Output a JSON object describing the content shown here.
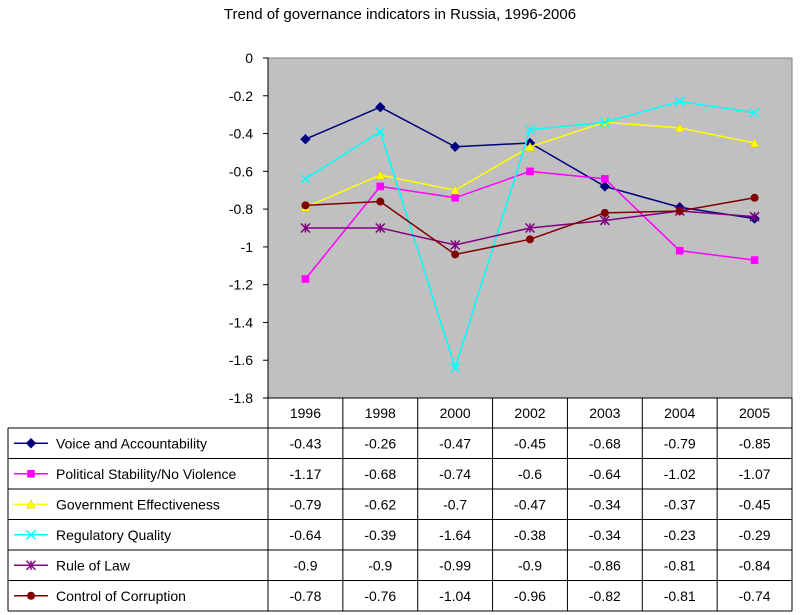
{
  "chart_data": {
    "type": "line",
    "title": "Trend of governance indicators in Russia, 1996-2006",
    "categories": [
      "1996",
      "1998",
      "2000",
      "2002",
      "2003",
      "2004",
      "2005"
    ],
    "ylim": [
      -1.8,
      0
    ],
    "yticks": [
      "0",
      "-0.2",
      "-0.4",
      "-0.6",
      "-0.8",
      "-1",
      "-1.2",
      "-1.4",
      "-1.6",
      "-1.8"
    ],
    "ytick_values": [
      0,
      -0.2,
      -0.4,
      -0.6,
      -0.8,
      -1,
      -1.2,
      -1.4,
      -1.6,
      -1.8
    ],
    "grid": false,
    "legend": "data-table",
    "plot_background": "#c0c0c0",
    "series": [
      {
        "name": "Voice and Accountability",
        "color": "#000080",
        "marker": "diamond",
        "values": [
          -0.43,
          -0.26,
          -0.47,
          -0.45,
          -0.68,
          -0.79,
          -0.85
        ],
        "labels": [
          "-0.43",
          "-0.26",
          "-0.47",
          "-0.45",
          "-0.68",
          "-0.79",
          "-0.85"
        ]
      },
      {
        "name": "Political Stability/No Violence",
        "color": "#ff00ff",
        "marker": "square",
        "values": [
          -1.17,
          -0.68,
          -0.74,
          -0.6,
          -0.64,
          -1.02,
          -1.07
        ],
        "labels": [
          "-1.17",
          "-0.68",
          "-0.74",
          "-0.6",
          "-0.64",
          "-1.02",
          "-1.07"
        ]
      },
      {
        "name": "Government Effectiveness",
        "color": "#ffff00",
        "marker": "triangle",
        "values": [
          -0.79,
          -0.62,
          -0.7,
          -0.47,
          -0.34,
          -0.37,
          -0.45
        ],
        "labels": [
          "-0.79",
          "-0.62",
          "-0.7",
          "-0.47",
          "-0.34",
          "-0.37",
          "-0.45"
        ]
      },
      {
        "name": "Regulatory Quality",
        "color": "#00ffff",
        "marker": "x",
        "values": [
          -0.64,
          -0.39,
          -1.64,
          -0.38,
          -0.34,
          -0.23,
          -0.29
        ],
        "labels": [
          "-0.64",
          "-0.39",
          "-1.64",
          "-0.38",
          "-0.34",
          "-0.23",
          "-0.29"
        ]
      },
      {
        "name": "Rule of Law",
        "color": "#800080",
        "marker": "star",
        "values": [
          -0.9,
          -0.9,
          -0.99,
          -0.9,
          -0.86,
          -0.81,
          -0.84
        ],
        "labels": [
          "-0.9",
          "-0.9",
          "-0.99",
          "-0.9",
          "-0.86",
          "-0.81",
          "-0.84"
        ]
      },
      {
        "name": "Control of Corruption",
        "color": "#800000",
        "marker": "circle",
        "values": [
          -0.78,
          -0.76,
          -1.04,
          -0.96,
          -0.82,
          -0.81,
          -0.74
        ],
        "labels": [
          "-0.78",
          "-0.76",
          "-1.04",
          "-0.96",
          "-0.82",
          "-0.81",
          "-0.74"
        ]
      }
    ]
  }
}
